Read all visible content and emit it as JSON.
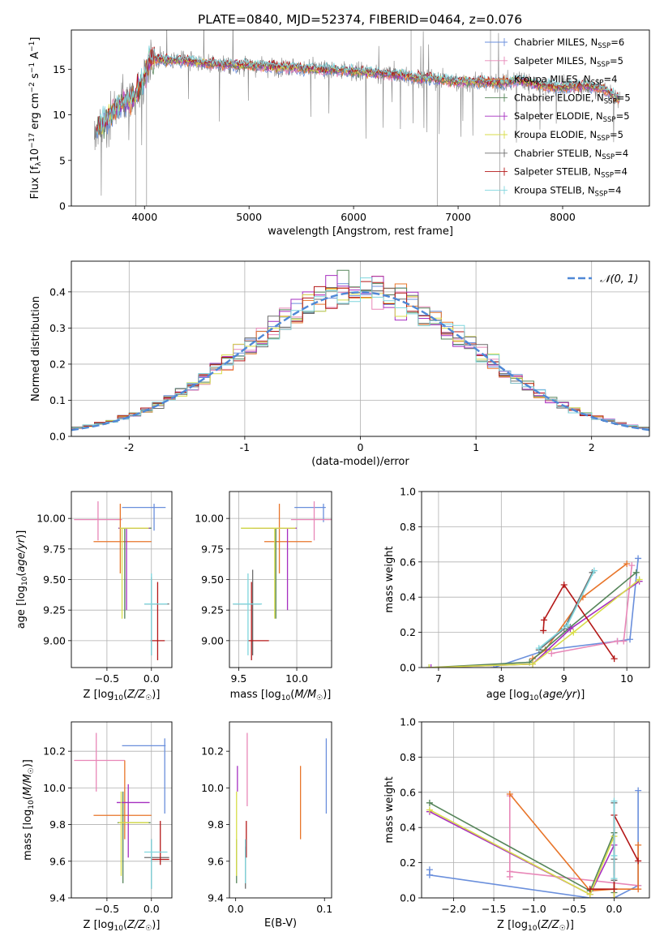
{
  "figure": {
    "title": "PLATE=0840, MJD=52374, FIBERID=0464, z=0.076"
  },
  "colors": {
    "Chabrier MILES": "#6a8fdc",
    "Salpeter MILES": "#e887b8",
    "Kroupa MILES": "#e8752a",
    "Chabrier ELODIE": "#56855a",
    "Salpeter ELODIE": "#a62fc0",
    "Kroupa ELODIE": "#d8dd4a",
    "Chabrier STELIB": "#6d6d6d",
    "Salpeter STELIB": "#b41818",
    "Kroupa STELIB": "#7fd6de",
    "normal": "#4f88d6",
    "grid": "#b0b0b0"
  },
  "chart_data": [
    {
      "id": "spectrum",
      "type": "line",
      "xlabel": "wavelength [Angstrom, rest frame]",
      "ylabel": "Flux [f_λ 10^-17 erg cm^-2 s^-1 A^-1]",
      "ylabel_parts": {
        "a": "Flux [f",
        "b": "λ",
        "c": "10",
        "d": "−17",
        "e": " erg cm",
        "f": "−2",
        "g": " s",
        "h": "−1",
        "i": " A",
        "j": "−1",
        "k": "]"
      },
      "xlim": [
        3300,
        8830
      ],
      "ylim": [
        0,
        19.3
      ],
      "xticks": [
        4000,
        5000,
        6000,
        7000,
        8000
      ],
      "yticks": [
        0,
        5,
        10,
        15
      ],
      "grid": false,
      "legend_position": "upper-right",
      "data_envelope": {
        "x": [
          3520,
          3600,
          3700,
          3800,
          3900,
          3980,
          4050,
          4200,
          4400,
          4600,
          4800,
          5000,
          5200,
          5400,
          5600,
          5800,
          6000,
          6200,
          6400,
          6600,
          6800,
          7000,
          7200,
          7400,
          7600,
          7800,
          8000,
          8200,
          8400,
          8550
        ],
        "y": [
          8.0,
          9.0,
          10.5,
          11.5,
          12.0,
          13.5,
          16.2,
          16.0,
          15.9,
          15.6,
          15.5,
          15.4,
          15.3,
          15.2,
          15.0,
          14.9,
          14.8,
          14.6,
          14.4,
          14.1,
          13.9,
          13.6,
          13.6,
          13.5,
          13.8,
          13.2,
          13.0,
          13.2,
          12.8,
          11.5
        ]
      },
      "series": [
        {
          "name": "Chabrier MILES",
          "nssp": "6"
        },
        {
          "name": "Salpeter MILES",
          "nssp": "5"
        },
        {
          "name": "Kroupa MILES",
          "nssp": "4"
        },
        {
          "name": "Chabrier ELODIE",
          "nssp": "5"
        },
        {
          "name": "Salpeter ELODIE",
          "nssp": "5"
        },
        {
          "name": "Kroupa ELODIE",
          "nssp": "5"
        },
        {
          "name": "Chabrier STELIB",
          "nssp": "4"
        },
        {
          "name": "Salpeter STELIB",
          "nssp": "4"
        },
        {
          "name": "Kroupa STELIB",
          "nssp": "4"
        }
      ]
    },
    {
      "id": "residuals",
      "type": "line",
      "xlabel": "(data-model)/error",
      "ylabel": "Normed distribution",
      "xlim": [
        -2.5,
        2.5
      ],
      "ylim": [
        0,
        0.485
      ],
      "xticks": [
        -2,
        -1,
        0,
        1,
        2
      ],
      "yticks": [
        0.0,
        0.1,
        0.2,
        0.3,
        0.4
      ],
      "grid": true,
      "legend_position": "upper-right",
      "legend_label": "𝒩(0, 1)",
      "bin_centers": [
        -2.45,
        -2.35,
        -2.25,
        -2.15,
        -2.05,
        -1.95,
        -1.85,
        -1.75,
        -1.65,
        -1.55,
        -1.45,
        -1.35,
        -1.25,
        -1.15,
        -1.05,
        -0.95,
        -0.85,
        -0.75,
        -0.65,
        -0.55,
        -0.45,
        -0.35,
        -0.25,
        -0.15,
        -0.05,
        0.05,
        0.15,
        0.25,
        0.35,
        0.45,
        0.55,
        0.65,
        0.75,
        0.85,
        0.95,
        1.05,
        1.15,
        1.25,
        1.35,
        1.45,
        1.55,
        1.65,
        1.75,
        1.85,
        1.95,
        2.05,
        2.15,
        2.25,
        2.35,
        2.45
      ]
    },
    {
      "id": "z-age",
      "type": "scatter",
      "xlabel": "Z [log10(Z/Z☉)]",
      "ylabel": "age [log10(age/yr)]",
      "xlim": [
        -0.9,
        0.23
      ],
      "ylim": [
        8.78,
        10.22
      ],
      "xticks": [
        -0.5,
        0.0
      ],
      "yticks": [
        9.0,
        9.25,
        9.5,
        9.75,
        10.0
      ],
      "xtick_labels": [
        "−0.5",
        "0.0"
      ],
      "ytick_labels": [
        "9.00",
        "9.25",
        "9.50",
        "9.75",
        "10.00"
      ],
      "grid": true,
      "points": [
        {
          "s": "Chabrier MILES",
          "x": 0.03,
          "y": 10.09,
          "xlo": -0.33,
          "xhi": 0.16,
          "ylo": 9.9,
          "yhi": 10.12
        },
        {
          "s": "Salpeter MILES",
          "x": -0.6,
          "y": 9.99,
          "xlo": -0.87,
          "xhi": -0.33,
          "ylo": 9.82,
          "yhi": 10.14
        },
        {
          "s": "Kroupa MILES",
          "x": -0.35,
          "y": 9.81,
          "xlo": -0.65,
          "xhi": 0.0,
          "ylo": 9.55,
          "yhi": 10.12
        },
        {
          "s": "Chabrier ELODIE",
          "x": -0.3,
          "y": 9.92,
          "xlo": -0.37,
          "xhi": 0.0,
          "ylo": 9.18,
          "yhi": 9.92
        },
        {
          "s": "Salpeter ELODIE",
          "x": -0.28,
          "y": 9.92,
          "xlo": -0.37,
          "xhi": -0.02,
          "ylo": 9.25,
          "yhi": 9.92
        },
        {
          "s": "Kroupa ELODIE",
          "x": -0.33,
          "y": 9.92,
          "xlo": -0.36,
          "xhi": -0.03,
          "ylo": 9.18,
          "yhi": 9.92
        },
        {
          "s": "Chabrier STELIB",
          "x": -0.0,
          "y": 9.3,
          "xlo": -0.08,
          "xhi": 0.2,
          "ylo": 8.88,
          "yhi": 9.52
        },
        {
          "s": "Salpeter STELIB",
          "x": 0.07,
          "y": 9.0,
          "xlo": -0.01,
          "xhi": 0.15,
          "ylo": 8.84,
          "yhi": 9.48
        },
        {
          "s": "Kroupa STELIB",
          "x": 0.0,
          "y": 9.3,
          "xlo": -0.08,
          "xhi": 0.18,
          "ylo": 8.88,
          "yhi": 9.55
        }
      ]
    },
    {
      "id": "mass-age",
      "type": "scatter",
      "xlabel": "mass [log10(M/M☉)]",
      "ylabel": "",
      "xlim": [
        9.42,
        10.3
      ],
      "ylim": [
        8.78,
        10.22
      ],
      "xticks": [
        9.5,
        10.0
      ],
      "yticks": [
        9.0,
        9.25,
        9.5,
        9.75,
        10.0
      ],
      "xtick_labels": [
        "9.5",
        "10.0"
      ],
      "ytick_labels": [
        "9.00",
        "9.25",
        "9.50",
        "9.75",
        "10.00"
      ],
      "grid": true,
      "points": [
        {
          "s": "Chabrier MILES",
          "x": 10.23,
          "y": 10.09,
          "xlo": 9.98,
          "xhi": 10.25,
          "ylo": 9.97,
          "yhi": 10.12
        },
        {
          "s": "Salpeter MILES",
          "x": 10.15,
          "y": 9.99,
          "xlo": 9.95,
          "xhi": 10.3,
          "ylo": 9.82,
          "yhi": 10.14
        },
        {
          "s": "Kroupa MILES",
          "x": 9.85,
          "y": 9.81,
          "xlo": 9.72,
          "xhi": 10.13,
          "ylo": 9.55,
          "yhi": 10.12
        },
        {
          "s": "Chabrier ELODIE",
          "x": 9.82,
          "y": 9.92,
          "xlo": 9.52,
          "xhi": 9.99,
          "ylo": 9.18,
          "yhi": 9.92
        },
        {
          "s": "Salpeter ELODIE",
          "x": 9.92,
          "y": 9.92,
          "xlo": 9.62,
          "xhi": 10.0,
          "ylo": 9.25,
          "yhi": 9.92
        },
        {
          "s": "Kroupa ELODIE",
          "x": 9.81,
          "y": 9.92,
          "xlo": 9.52,
          "xhi": 9.99,
          "ylo": 9.18,
          "yhi": 9.92
        },
        {
          "s": "Chabrier STELIB",
          "x": 9.62,
          "y": 9.3,
          "xlo": 9.45,
          "xhi": 9.69,
          "ylo": 8.88,
          "yhi": 9.58
        },
        {
          "s": "Salpeter STELIB",
          "x": 9.61,
          "y": 9.0,
          "xlo": 9.58,
          "xhi": 9.76,
          "ylo": 8.84,
          "yhi": 9.48
        },
        {
          "s": "Kroupa STELIB",
          "x": 9.58,
          "y": 9.3,
          "xlo": 9.45,
          "xhi": 9.7,
          "ylo": 8.88,
          "yhi": 9.55
        }
      ]
    },
    {
      "id": "age-weight",
      "type": "line",
      "xlabel": "age [log10(age/yr)]",
      "ylabel": "mass weight",
      "xlim": [
        6.73,
        10.36
      ],
      "ylim": [
        0,
        1.0
      ],
      "xticks": [
        7,
        8,
        9,
        10
      ],
      "yticks": [
        0.0,
        0.2,
        0.4,
        0.6,
        0.8,
        1.0
      ],
      "xtick_labels": [
        "7",
        "8",
        "9",
        "10"
      ],
      "ytick_labels": [
        "0.0",
        "0.2",
        "0.4",
        "0.6",
        "0.8",
        "1.0"
      ],
      "grid": true,
      "series": [
        {
          "name": "Chabrier MILES",
          "x": [
            7.88,
            8.72,
            9.85,
            10.05,
            10.18
          ],
          "y": [
            0.0,
            0.1,
            0.15,
            0.16,
            0.62
          ]
        },
        {
          "name": "Salpeter MILES",
          "x": [
            8.8,
            9.85,
            9.95,
            10.08
          ],
          "y": [
            0.08,
            0.15,
            0.15,
            0.58
          ]
        },
        {
          "name": "Kroupa MILES",
          "x": [
            8.5,
            8.7,
            9.3,
            10.0
          ],
          "y": [
            0.05,
            0.1,
            0.4,
            0.59
          ]
        },
        {
          "name": "Chabrier ELODIE",
          "x": [
            6.85,
            8.45,
            9.1,
            10.15
          ],
          "y": [
            0.0,
            0.03,
            0.23,
            0.54
          ]
        },
        {
          "name": "Salpeter ELODIE",
          "x": [
            6.88,
            8.5,
            9.1,
            10.2
          ],
          "y": [
            0.0,
            0.02,
            0.22,
            0.49
          ]
        },
        {
          "name": "Kroupa ELODIE",
          "x": [
            6.85,
            8.5,
            9.15,
            10.2
          ],
          "y": [
            0.0,
            0.02,
            0.2,
            0.5
          ]
        },
        {
          "name": "Chabrier STELIB",
          "x": [
            8.6,
            9.0,
            9.45
          ],
          "y": [
            0.1,
            0.22,
            0.54
          ]
        },
        {
          "name": "Salpeter STELIB",
          "x": [
            8.67,
            8.68,
            9.0,
            9.8
          ],
          "y": [
            0.21,
            0.27,
            0.47,
            0.05
          ]
        },
        {
          "name": "Kroupa STELIB",
          "x": [
            8.6,
            9.05,
            9.48
          ],
          "y": [
            0.11,
            0.24,
            0.55
          ]
        }
      ]
    },
    {
      "id": "z-mass",
      "type": "scatter",
      "xlabel": "Z [log10(Z/Z☉)]",
      "ylabel": "mass [log10(M/M☉)]",
      "xlim": [
        -0.9,
        0.23
      ],
      "ylim": [
        9.4,
        10.36
      ],
      "xticks": [
        -0.5,
        0.0
      ],
      "yticks": [
        9.4,
        9.6,
        9.8,
        10.0,
        10.2
      ],
      "xtick_labels": [
        "−0.5",
        "0.0"
      ],
      "ytick_labels": [
        "9.4",
        "9.6",
        "9.8",
        "10.0",
        "10.2"
      ],
      "grid": true,
      "points": [
        {
          "s": "Chabrier MILES",
          "x": 0.15,
          "y": 10.23,
          "xlo": -0.33,
          "xhi": 0.16,
          "ylo": 9.86,
          "yhi": 10.27
        },
        {
          "s": "Salpeter MILES",
          "x": -0.62,
          "y": 10.15,
          "xlo": -0.87,
          "xhi": -0.3,
          "ylo": 9.98,
          "yhi": 10.3
        },
        {
          "s": "Kroupa MILES",
          "x": -0.3,
          "y": 9.85,
          "xlo": -0.65,
          "xhi": 0.0,
          "ylo": 9.72,
          "yhi": 10.15
        },
        {
          "s": "Chabrier ELODIE",
          "x": -0.32,
          "y": 9.81,
          "xlo": -0.38,
          "xhi": -0.01,
          "ylo": 9.48,
          "yhi": 9.98
        },
        {
          "s": "Salpeter ELODIE",
          "x": -0.26,
          "y": 9.92,
          "xlo": -0.39,
          "xhi": -0.02,
          "ylo": 9.62,
          "yhi": 10.02
        },
        {
          "s": "Kroupa ELODIE",
          "x": -0.34,
          "y": 9.81,
          "xlo": -0.37,
          "xhi": -0.03,
          "ylo": 9.52,
          "yhi": 9.98
        },
        {
          "s": "Chabrier STELIB",
          "x": 0.0,
          "y": 9.62,
          "xlo": -0.08,
          "xhi": 0.2,
          "ylo": 9.45,
          "yhi": 9.72
        },
        {
          "s": "Salpeter STELIB",
          "x": 0.1,
          "y": 9.61,
          "xlo": 0.0,
          "xhi": 0.2,
          "ylo": 9.58,
          "yhi": 9.82
        },
        {
          "s": "Kroupa STELIB",
          "x": 0.0,
          "y": 9.65,
          "xlo": -0.08,
          "xhi": 0.18,
          "ylo": 9.45,
          "yhi": 9.72
        }
      ]
    },
    {
      "id": "ebv-mass",
      "type": "scatter",
      "xlabel": "E(B-V)",
      "ylabel": "",
      "xlim": [
        -0.007,
        0.108
      ],
      "ylim": [
        9.4,
        10.36
      ],
      "xticks": [
        0.0,
        0.1
      ],
      "yticks": [
        9.4,
        9.6,
        9.8,
        10.0,
        10.2
      ],
      "xtick_labels": [
        "0.0",
        "0.1"
      ],
      "ytick_labels": [
        "9.4",
        "9.6",
        "9.8",
        "10.0",
        "10.2"
      ],
      "grid": false,
      "points": [
        {
          "s": "Chabrier MILES",
          "x": 0.102,
          "y": 10.06,
          "xlo": 0.102,
          "xhi": 0.102,
          "ylo": 9.86,
          "yhi": 10.27
        },
        {
          "s": "Salpeter MILES",
          "x": 0.013,
          "y": 10.1,
          "xlo": 0.013,
          "xhi": 0.013,
          "ylo": 9.9,
          "yhi": 10.3
        },
        {
          "s": "Kroupa MILES",
          "x": 0.073,
          "y": 9.92,
          "xlo": 0.073,
          "xhi": 0.073,
          "ylo": 9.72,
          "yhi": 10.12
        },
        {
          "s": "Chabrier ELODIE",
          "x": 0.001,
          "y": 9.6,
          "xlo": 0.001,
          "xhi": 0.001,
          "ylo": 9.48,
          "yhi": 9.72
        },
        {
          "s": "Salpeter ELODIE",
          "x": 0.002,
          "y": 10.05,
          "xlo": 0.002,
          "xhi": 0.002,
          "ylo": 9.98,
          "yhi": 10.12
        },
        {
          "s": "Kroupa ELODIE",
          "x": 0.001,
          "y": 9.78,
          "xlo": 0.001,
          "xhi": 0.001,
          "ylo": 9.52,
          "yhi": 9.98
        },
        {
          "s": "Chabrier STELIB",
          "x": 0.011,
          "y": 9.58,
          "xlo": 0.011,
          "xhi": 0.011,
          "ylo": 9.45,
          "yhi": 9.68
        },
        {
          "s": "Salpeter STELIB",
          "x": 0.012,
          "y": 9.72,
          "xlo": 0.012,
          "xhi": 0.012,
          "ylo": 9.62,
          "yhi": 9.82
        },
        {
          "s": "Kroupa STELIB",
          "x": 0.011,
          "y": 9.6,
          "xlo": 0.011,
          "xhi": 0.011,
          "ylo": 9.48,
          "yhi": 9.72
        }
      ]
    },
    {
      "id": "z-weight",
      "type": "line",
      "xlabel": "Z [log10(Z/Z☉)]",
      "ylabel": "mass weight",
      "xlim": [
        -2.4,
        0.44
      ],
      "ylim": [
        0,
        1.0
      ],
      "xticks": [
        -2.0,
        -1.5,
        -1.0,
        -0.5,
        0.0
      ],
      "yticks": [
        0.0,
        0.2,
        0.4,
        0.6,
        0.8,
        1.0
      ],
      "xtick_labels": [
        "−2.0",
        "−1.5",
        "−1.0",
        "−0.5",
        "0.0"
      ],
      "ytick_labels": [
        "0.0",
        "0.2",
        "0.4",
        "0.6",
        "0.8",
        "1.0"
      ],
      "grid": true,
      "series": [
        {
          "name": "Chabrier MILES",
          "x": [
            -2.3,
            -2.3,
            -0.3,
            0.0,
            0.3,
            0.3
          ],
          "y": [
            0.16,
            0.13,
            0.0,
            0.0,
            0.07,
            0.61
          ]
        },
        {
          "name": "Salpeter MILES",
          "x": [
            -1.3,
            -1.3,
            -1.3,
            0.3,
            0.3
          ],
          "y": [
            0.58,
            0.12,
            0.15,
            0.07,
            0.05
          ]
        },
        {
          "name": "Kroupa MILES",
          "x": [
            -1.3,
            -0.3,
            0.0,
            0.3,
            0.3
          ],
          "y": [
            0.59,
            0.04,
            0.05,
            0.05,
            0.3
          ]
        },
        {
          "name": "Chabrier ELODIE",
          "x": [
            -2.3,
            -0.3,
            0.0,
            0.0
          ],
          "y": [
            0.54,
            0.04,
            0.37,
            0.03
          ]
        },
        {
          "name": "Salpeter ELODIE",
          "x": [
            -2.3,
            -0.3,
            0.0,
            0.0
          ],
          "y": [
            0.49,
            0.02,
            0.3,
            0.0
          ]
        },
        {
          "name": "Kroupa ELODIE",
          "x": [
            -2.3,
            -0.3,
            0.0,
            0.0
          ],
          "y": [
            0.5,
            0.02,
            0.35,
            0.0
          ]
        },
        {
          "name": "Chabrier STELIB",
          "x": [
            0.0,
            0.0,
            0.0
          ],
          "y": [
            0.54,
            0.1,
            0.22
          ]
        },
        {
          "name": "Salpeter STELIB",
          "x": [
            -0.3,
            0.0,
            0.0,
            0.3
          ],
          "y": [
            0.05,
            0.05,
            0.47,
            0.21
          ]
        },
        {
          "name": "Kroupa STELIB",
          "x": [
            0.0,
            0.0,
            0.0
          ],
          "y": [
            0.55,
            0.11,
            0.24
          ]
        }
      ]
    }
  ]
}
